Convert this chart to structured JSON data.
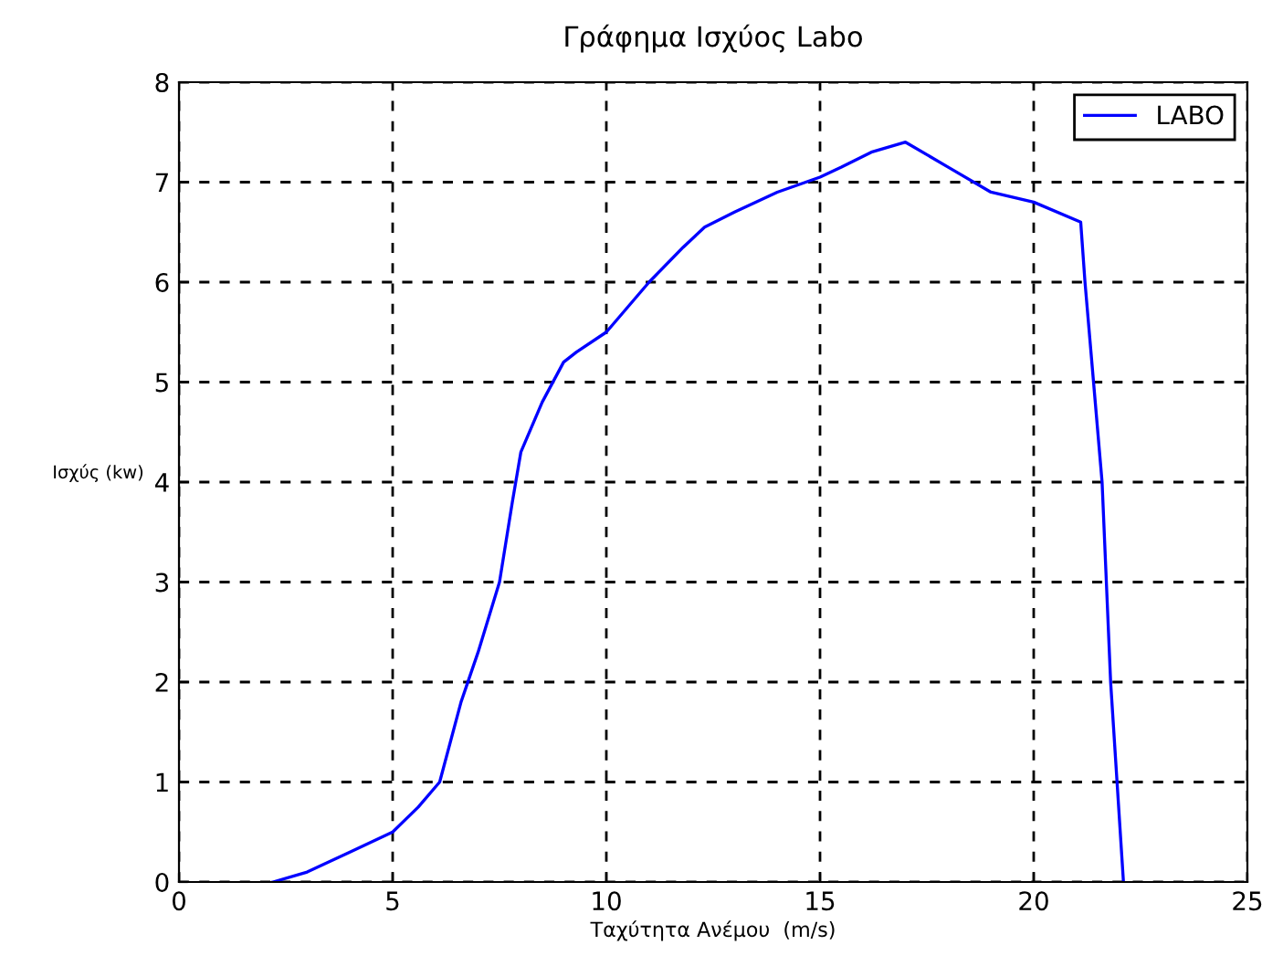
{
  "chart_data": {
    "type": "line",
    "title": "Γράφημα Ισχύος Labo",
    "xlabel": "Ταχύτητα Ανέμου  (m/s)",
    "ylabel": "Ισχύς (kw)",
    "series": [
      {
        "name": "LABO",
        "color": "#0000ff",
        "x": [
          2.2,
          3,
          4,
          5,
          5.6,
          6.1,
          6.6,
          7,
          7.5,
          7.8,
          8,
          8.5,
          9,
          9.3,
          10,
          11,
          11.8,
          12.3,
          13,
          14,
          15,
          15.5,
          16.2,
          17,
          18,
          19,
          20,
          21.1,
          21.2,
          21.4,
          21.6,
          21.8,
          22.1
        ],
        "values": [
          0,
          0.1,
          0.3,
          0.5,
          0.75,
          1.0,
          1.8,
          2.3,
          3.0,
          3.8,
          4.3,
          4.8,
          5.2,
          5.3,
          5.5,
          6.0,
          6.35,
          6.55,
          6.7,
          6.9,
          7.05,
          7.15,
          7.3,
          7.4,
          7.15,
          6.9,
          6.8,
          6.6,
          6.0,
          5.0,
          4.0,
          2.0,
          0
        ]
      }
    ],
    "xlim": [
      0,
      25
    ],
    "ylim": [
      0,
      8
    ],
    "xticks": [
      0,
      5,
      10,
      15,
      20,
      25
    ],
    "yticks": [
      0,
      1,
      2,
      3,
      4,
      5,
      6,
      7,
      8
    ],
    "grid": true,
    "legend": "top right",
    "marker": "none",
    "line_style": "solid"
  }
}
